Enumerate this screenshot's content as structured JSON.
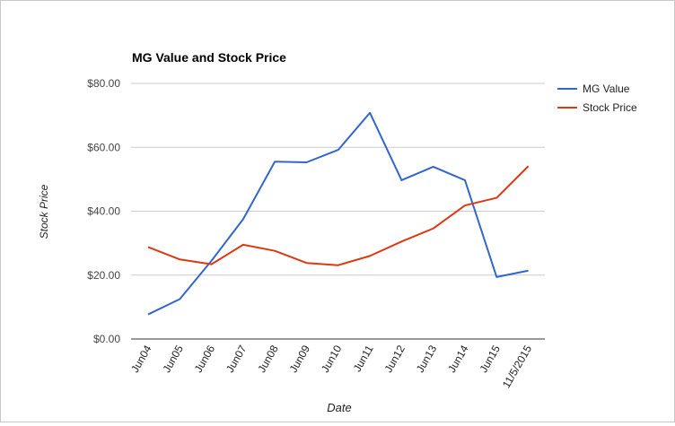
{
  "chart_data": {
    "type": "line",
    "title": "MG Value and Stock Price",
    "xlabel": "Date",
    "ylabel": "Stock Price",
    "categories": [
      "Jun04",
      "Jun05",
      "Jun06",
      "Jun07",
      "Jun08",
      "Jun09",
      "Jun10",
      "Jun11",
      "Jun12",
      "Jun13",
      "Jun14",
      "Jun15",
      "11/5/2015"
    ],
    "series": [
      {
        "name": "MG Value",
        "color": "#3366cc",
        "values": [
          7.7,
          12.5,
          24.5,
          37.5,
          55.5,
          55.3,
          59.2,
          70.8,
          49.7,
          53.9,
          49.7,
          19.4,
          21.4
        ]
      },
      {
        "name": "Stock Price",
        "color": "#dc3912",
        "values": [
          28.8,
          24.9,
          23.4,
          29.5,
          27.6,
          23.8,
          23.1,
          26.0,
          30.5,
          34.6,
          41.8,
          44.2,
          54.1
        ]
      }
    ],
    "yticks": [
      "$0.00",
      "$20.00",
      "$40.00",
      "$60.00",
      "$80.00"
    ],
    "ylim": [
      0,
      80
    ],
    "ystep": 20,
    "grid": true,
    "legend": "right"
  }
}
